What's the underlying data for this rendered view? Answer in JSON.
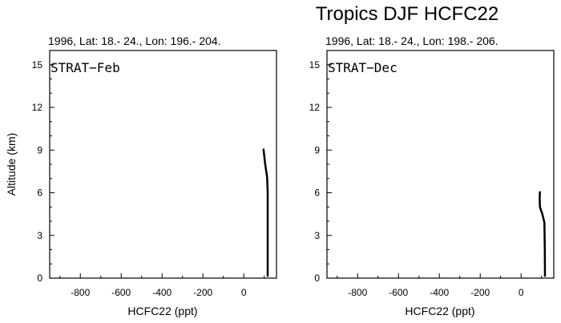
{
  "title": "Tropics DJF HCFC22",
  "chart_data": [
    {
      "type": "line",
      "subtitle": "1996, Lat: 18.- 24., Lon: 196.- 204.",
      "panel_label": "STRAT−Feb",
      "xlabel": "HCFC22 (ppt)",
      "ylabel": "Altitude (km)",
      "xlim": [
        -950,
        160
      ],
      "ylim": [
        0,
        16
      ],
      "xticks": [
        -800,
        -600,
        -400,
        -200,
        0
      ],
      "yticks": [
        0,
        3,
        6,
        9,
        12,
        15
      ],
      "grid": false,
      "series": [
        {
          "x": [
            96,
            100,
            104,
            108,
            114,
            117,
            117,
            117,
            117
          ],
          "y": [
            9.1,
            8.6,
            8.1,
            7.7,
            7.1,
            6.0,
            4.0,
            2.0,
            0.1
          ]
        }
      ]
    },
    {
      "type": "line",
      "subtitle": "1996, Lat: 18.- 24., Lon: 198.- 206.",
      "panel_label": "STRAT−Dec",
      "xlabel": "HCFC22 (ppt)",
      "ylabel": "",
      "xlim": [
        -950,
        160
      ],
      "ylim": [
        0,
        16
      ],
      "xticks": [
        -800,
        -600,
        -400,
        -200,
        0
      ],
      "yticks": [
        0,
        3,
        6,
        9,
        12,
        15
      ],
      "grid": false,
      "series": [
        {
          "x": [
            92,
            91,
            92,
            104,
            114,
            116,
            117
          ],
          "y": [
            6.1,
            5.6,
            5.0,
            4.5,
            3.9,
            2.0,
            0.1
          ]
        }
      ]
    }
  ]
}
